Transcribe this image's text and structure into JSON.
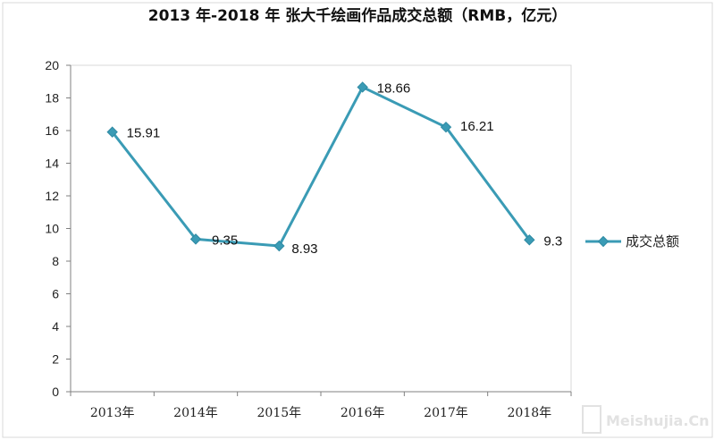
{
  "chart_data": {
    "type": "line",
    "title": "2013 年-2018 年  张大千绘画作品成交总额（RMB，亿元）",
    "categories": [
      "2013年",
      "2014年",
      "2015年",
      "2016年",
      "2017年",
      "2018年"
    ],
    "series": [
      {
        "name": "成交总额",
        "values": [
          15.91,
          9.35,
          8.93,
          18.66,
          16.21,
          9.3
        ],
        "labels": [
          "15.91",
          "9.35",
          "8.93",
          "18.66",
          "16.21",
          "9.3"
        ],
        "color": "#3a9bb5",
        "marker": "diamond"
      }
    ],
    "ylim": [
      0,
      20
    ],
    "yticks": [
      "0",
      "2",
      "4",
      "6",
      "8",
      "10",
      "12",
      "14",
      "16",
      "18",
      "20"
    ],
    "grid": false,
    "legend_position": "right"
  },
  "watermark": "Meishujia.Cn"
}
